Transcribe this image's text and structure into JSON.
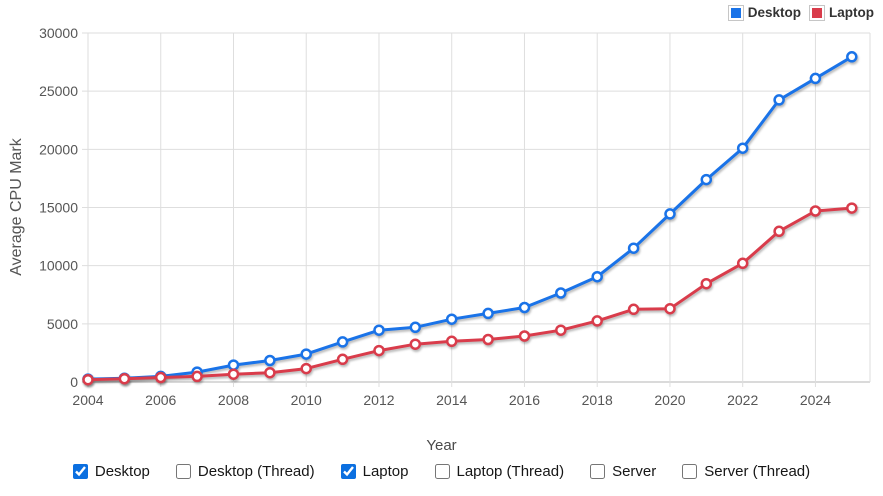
{
  "chart_data": {
    "type": "line",
    "title": "",
    "xlabel": "Year",
    "ylabel": "Average CPU Mark",
    "xlim": [
      2004,
      2025.5
    ],
    "ylim": [
      0,
      30000
    ],
    "x_ticks": [
      2004,
      2006,
      2008,
      2010,
      2012,
      2014,
      2016,
      2018,
      2020,
      2022,
      2024
    ],
    "y_ticks": [
      0,
      5000,
      10000,
      15000,
      20000,
      25000,
      30000
    ],
    "grid": true,
    "legend_position": "top-right",
    "marker": "open-circle",
    "x": [
      2004,
      2005,
      2006,
      2007,
      2008,
      2009,
      2010,
      2011,
      2012,
      2013,
      2014,
      2015,
      2016,
      2017,
      2018,
      2019,
      2020,
      2021,
      2022,
      2023,
      2024,
      2025
    ],
    "series": [
      {
        "name": "Desktop",
        "color": "#1a73e8",
        "values": [
          250,
          330,
          480,
          850,
          1450,
          1850,
          2400,
          3450,
          4450,
          4700,
          5400,
          5900,
          6400,
          7650,
          9050,
          11500,
          14450,
          17400,
          20100,
          24250,
          26100,
          27950
        ]
      },
      {
        "name": "Laptop",
        "color": "#d93c4b",
        "values": [
          200,
          280,
          390,
          480,
          670,
          800,
          1150,
          1950,
          2700,
          3250,
          3500,
          3650,
          3950,
          4450,
          5250,
          6250,
          6300,
          8450,
          10200,
          12950,
          14700,
          14950
        ]
      }
    ]
  },
  "controls": {
    "items": [
      {
        "label": "Desktop",
        "checked": true
      },
      {
        "label": "Desktop (Thread)",
        "checked": false
      },
      {
        "label": "Laptop",
        "checked": true
      },
      {
        "label": "Laptop (Thread)",
        "checked": false
      },
      {
        "label": "Server",
        "checked": false
      },
      {
        "label": "Server (Thread)",
        "checked": false
      }
    ]
  },
  "colors": {
    "grid": "#dedede",
    "zero_line": "#b5b5b5",
    "tick_text": "#565656",
    "checkbox_accent": "#0b6fe0"
  }
}
